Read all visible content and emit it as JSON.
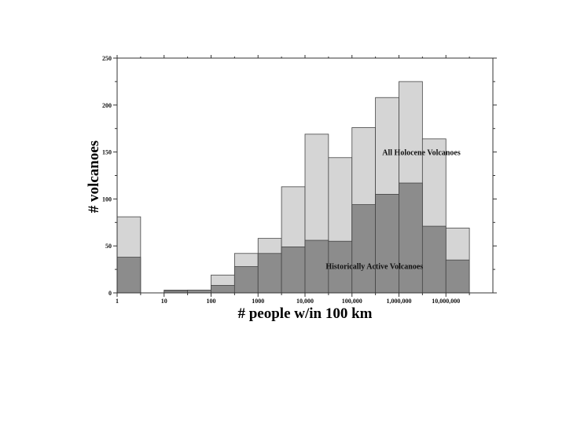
{
  "chart_data": {
    "type": "bar",
    "stacked": false,
    "overlaid": true,
    "x_scale": "log",
    "bins": [
      [
        1,
        3.16
      ],
      [
        3.16,
        10
      ],
      [
        10,
        31.6
      ],
      [
        31.6,
        100
      ],
      [
        100,
        316
      ],
      [
        316,
        1000
      ],
      [
        1000,
        3160
      ],
      [
        3160,
        10000
      ],
      [
        10000,
        31600
      ],
      [
        31600,
        100000
      ],
      [
        100000,
        316000
      ],
      [
        316000,
        1000000
      ],
      [
        1000000,
        3160000
      ],
      [
        3160000,
        10000000
      ],
      [
        10000000,
        31600000
      ]
    ],
    "series": [
      {
        "name": "All Holocene Volcanoes",
        "values": [
          81,
          0,
          3,
          3,
          19,
          42,
          58,
          113,
          169,
          144,
          176,
          208,
          225,
          164,
          69
        ],
        "color": "#d5d5d5"
      },
      {
        "name": "Historically Active Volcanoes",
        "values": [
          38,
          0,
          2,
          3,
          8,
          28,
          42,
          49,
          56,
          55,
          94,
          105,
          117,
          71,
          35
        ],
        "color": "#8c8c8c"
      }
    ],
    "xlabel": "# people w/in 100 km",
    "ylabel": "# volcanoes",
    "ylim": [
      0,
      250
    ],
    "xlim": [
      1,
      31622777
    ],
    "x_ticks": [
      {
        "value": 1,
        "label": "1"
      },
      {
        "value": 10,
        "label": "10"
      },
      {
        "value": 100,
        "label": "100"
      },
      {
        "value": 1000,
        "label": "1000"
      },
      {
        "value": 10000,
        "label": "10,000"
      },
      {
        "value": 100000,
        "label": "100,000"
      },
      {
        "value": 1000000,
        "label": "1,000,000"
      },
      {
        "value": 10000000,
        "label": "10,000,000"
      }
    ],
    "y_ticks": [
      0,
      50,
      100,
      150,
      200,
      250
    ],
    "annotations": [
      {
        "text": "All Holocene Volcanoes",
        "x": 3000000,
        "y": 150
      },
      {
        "text": "Historically Active Volcanoes",
        "x": 300000,
        "y": 29
      }
    ],
    "grid": false
  }
}
